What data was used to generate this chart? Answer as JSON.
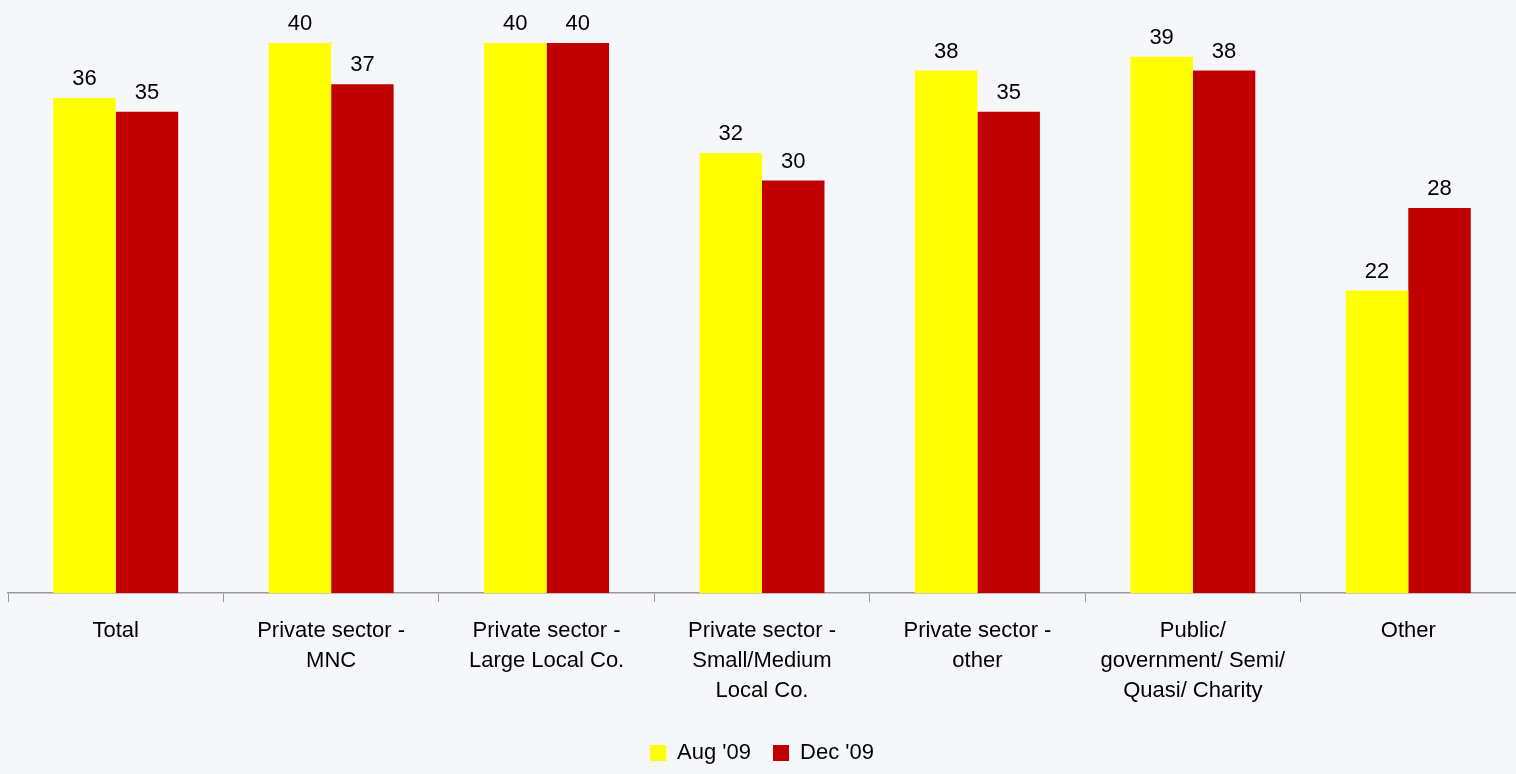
{
  "chart_data": {
    "type": "bar",
    "categories": [
      "Total",
      "Private sector - MNC",
      "Private sector - Large Local Co.",
      "Private sector - Small/Medium Local Co.",
      "Private sector - other",
      "Public/ government/ Semi/ Quasi/ Charity",
      "Other"
    ],
    "series": [
      {
        "name": "Aug '09",
        "color": "#ffff00",
        "values": [
          36,
          40,
          40,
          32,
          38,
          39,
          22
        ]
      },
      {
        "name": "Dec '09",
        "color": "#c00000",
        "values": [
          35,
          37,
          40,
          30,
          35,
          38,
          28
        ]
      }
    ],
    "tick_labels": "x",
    "data_labels": true,
    "grid": false,
    "legend": "bottom"
  }
}
